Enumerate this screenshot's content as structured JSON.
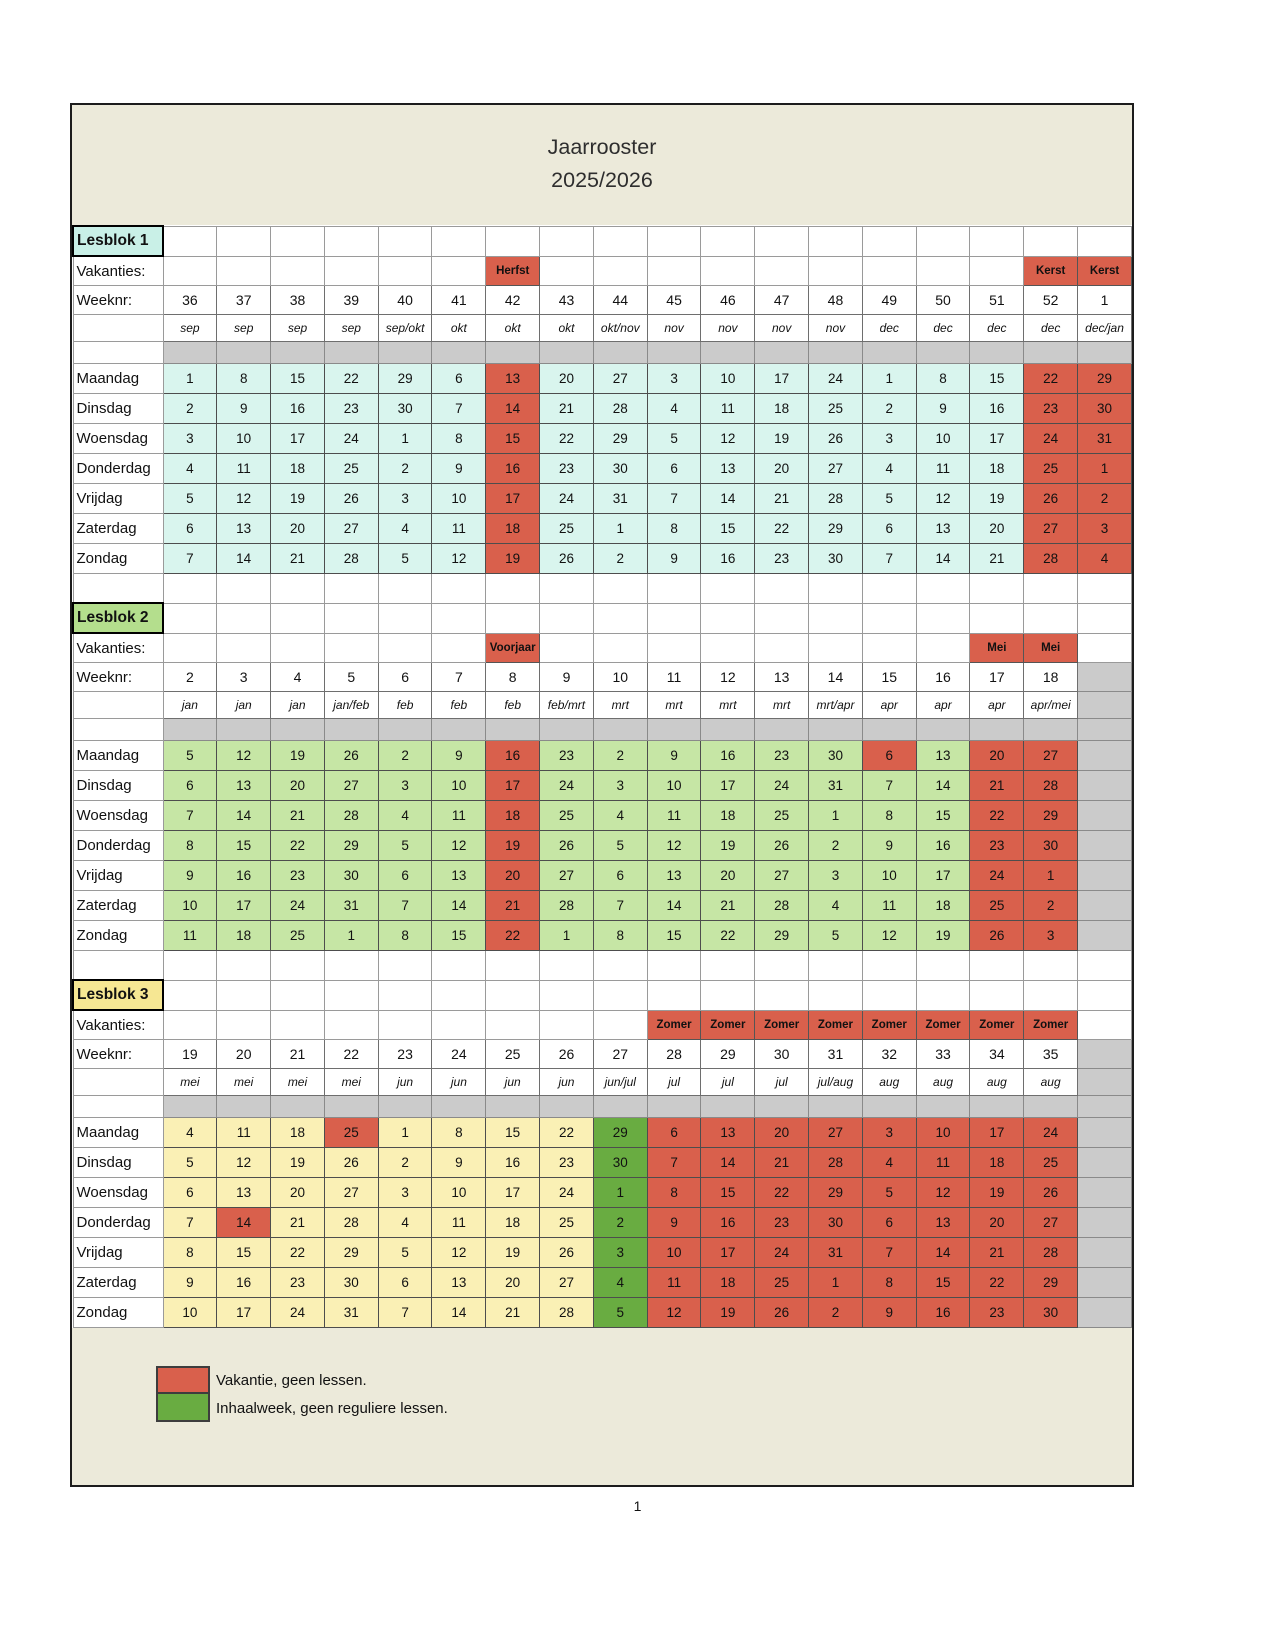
{
  "title": {
    "line1": "Jaarrooster",
    "line2": "2025/2026"
  },
  "page": {
    "number": "1"
  },
  "labels": {
    "vakanties": "Vakanties:",
    "weeknr": "Weeknr:"
  },
  "colors": {
    "vacation_red": "#D9604C",
    "inhaal_green": "#69AC41",
    "filler_gray": "#CBCBCB",
    "sheet_background": "#ECEADA"
  },
  "legend": [
    {
      "color": "#D9604C",
      "label": "Vakantie, geen lessen."
    },
    {
      "color": "#69AC41",
      "label": "Inhaalweek, geen reguliere lessen."
    }
  ],
  "blocks": [
    {
      "name": "Lesblok 1",
      "label_bg": "#C9F0E7",
      "cell_bg": "#D9F5EE",
      "has_filler_col": false,
      "inhaal_weeks": [],
      "extra_red_cells": [],
      "columns": [
        {
          "week": "36",
          "month": "sep",
          "vacation": ""
        },
        {
          "week": "37",
          "month": "sep",
          "vacation": ""
        },
        {
          "week": "38",
          "month": "sep",
          "vacation": ""
        },
        {
          "week": "39",
          "month": "sep",
          "vacation": ""
        },
        {
          "week": "40",
          "month": "sep/okt",
          "vacation": ""
        },
        {
          "week": "41",
          "month": "okt",
          "vacation": ""
        },
        {
          "week": "42",
          "month": "okt",
          "vacation": "Herfst"
        },
        {
          "week": "43",
          "month": "okt",
          "vacation": ""
        },
        {
          "week": "44",
          "month": "okt/nov",
          "vacation": ""
        },
        {
          "week": "45",
          "month": "nov",
          "vacation": ""
        },
        {
          "week": "46",
          "month": "nov",
          "vacation": ""
        },
        {
          "week": "47",
          "month": "nov",
          "vacation": ""
        },
        {
          "week": "48",
          "month": "nov",
          "vacation": ""
        },
        {
          "week": "49",
          "month": "dec",
          "vacation": ""
        },
        {
          "week": "50",
          "month": "dec",
          "vacation": ""
        },
        {
          "week": "51",
          "month": "dec",
          "vacation": ""
        },
        {
          "week": "52",
          "month": "dec",
          "vacation": "Kerst"
        },
        {
          "week": "1",
          "month": "dec/jan",
          "vacation": "Kerst"
        }
      ],
      "rows": [
        {
          "day": "Maandag",
          "values": [
            1,
            8,
            15,
            22,
            29,
            6,
            13,
            20,
            27,
            3,
            10,
            17,
            24,
            1,
            8,
            15,
            22,
            29
          ]
        },
        {
          "day": "Dinsdag",
          "values": [
            2,
            9,
            16,
            23,
            30,
            7,
            14,
            21,
            28,
            4,
            11,
            18,
            25,
            2,
            9,
            16,
            23,
            30
          ]
        },
        {
          "day": "Woensdag",
          "values": [
            3,
            10,
            17,
            24,
            1,
            8,
            15,
            22,
            29,
            5,
            12,
            19,
            26,
            3,
            10,
            17,
            24,
            31
          ]
        },
        {
          "day": "Donderdag",
          "values": [
            4,
            11,
            18,
            25,
            2,
            9,
            16,
            23,
            30,
            6,
            13,
            20,
            27,
            4,
            11,
            18,
            25,
            1
          ]
        },
        {
          "day": "Vrijdag",
          "values": [
            5,
            12,
            19,
            26,
            3,
            10,
            17,
            24,
            31,
            7,
            14,
            21,
            28,
            5,
            12,
            19,
            26,
            2
          ]
        },
        {
          "day": "Zaterdag",
          "values": [
            6,
            13,
            20,
            27,
            4,
            11,
            18,
            25,
            1,
            8,
            15,
            22,
            29,
            6,
            13,
            20,
            27,
            3
          ]
        },
        {
          "day": "Zondag",
          "values": [
            7,
            14,
            21,
            28,
            5,
            12,
            19,
            26,
            2,
            9,
            16,
            23,
            30,
            7,
            14,
            21,
            28,
            4
          ]
        }
      ]
    },
    {
      "name": "Lesblok 2",
      "label_bg": "#B4DE8D",
      "cell_bg": "#C6E6A5",
      "has_filler_col": true,
      "inhaal_weeks": [],
      "extra_red_cells": [
        {
          "day": "Maandag",
          "week": "15"
        }
      ],
      "columns": [
        {
          "week": "2",
          "month": "jan",
          "vacation": ""
        },
        {
          "week": "3",
          "month": "jan",
          "vacation": ""
        },
        {
          "week": "4",
          "month": "jan",
          "vacation": ""
        },
        {
          "week": "5",
          "month": "jan/feb",
          "vacation": ""
        },
        {
          "week": "6",
          "month": "feb",
          "vacation": ""
        },
        {
          "week": "7",
          "month": "feb",
          "vacation": ""
        },
        {
          "week": "8",
          "month": "feb",
          "vacation": "Voorjaar"
        },
        {
          "week": "9",
          "month": "feb/mrt",
          "vacation": ""
        },
        {
          "week": "10",
          "month": "mrt",
          "vacation": ""
        },
        {
          "week": "11",
          "month": "mrt",
          "vacation": ""
        },
        {
          "week": "12",
          "month": "mrt",
          "vacation": ""
        },
        {
          "week": "13",
          "month": "mrt",
          "vacation": ""
        },
        {
          "week": "14",
          "month": "mrt/apr",
          "vacation": ""
        },
        {
          "week": "15",
          "month": "apr",
          "vacation": ""
        },
        {
          "week": "16",
          "month": "apr",
          "vacation": ""
        },
        {
          "week": "17",
          "month": "apr",
          "vacation": "Mei"
        },
        {
          "week": "18",
          "month": "apr/mei",
          "vacation": "Mei"
        }
      ],
      "rows": [
        {
          "day": "Maandag",
          "values": [
            5,
            12,
            19,
            26,
            2,
            9,
            16,
            23,
            2,
            9,
            16,
            23,
            30,
            6,
            13,
            20,
            27
          ]
        },
        {
          "day": "Dinsdag",
          "values": [
            6,
            13,
            20,
            27,
            3,
            10,
            17,
            24,
            3,
            10,
            17,
            24,
            31,
            7,
            14,
            21,
            28
          ]
        },
        {
          "day": "Woensdag",
          "values": [
            7,
            14,
            21,
            28,
            4,
            11,
            18,
            25,
            4,
            11,
            18,
            25,
            1,
            8,
            15,
            22,
            29
          ]
        },
        {
          "day": "Donderdag",
          "values": [
            8,
            15,
            22,
            29,
            5,
            12,
            19,
            26,
            5,
            12,
            19,
            26,
            2,
            9,
            16,
            23,
            30
          ]
        },
        {
          "day": "Vrijdag",
          "values": [
            9,
            16,
            23,
            30,
            6,
            13,
            20,
            27,
            6,
            13,
            20,
            27,
            3,
            10,
            17,
            24,
            1
          ]
        },
        {
          "day": "Zaterdag",
          "values": [
            10,
            17,
            24,
            31,
            7,
            14,
            21,
            28,
            7,
            14,
            21,
            28,
            4,
            11,
            18,
            25,
            2
          ]
        },
        {
          "day": "Zondag",
          "values": [
            11,
            18,
            25,
            1,
            8,
            15,
            22,
            1,
            8,
            15,
            22,
            29,
            5,
            12,
            19,
            26,
            3
          ]
        }
      ]
    },
    {
      "name": "Lesblok 3",
      "label_bg": "#F6E793",
      "cell_bg": "#FAF0B5",
      "has_filler_col": true,
      "inhaal_weeks": [
        "27"
      ],
      "extra_red_cells": [
        {
          "day": "Maandag",
          "week": "22"
        },
        {
          "day": "Donderdag",
          "week": "20"
        }
      ],
      "columns": [
        {
          "week": "19",
          "month": "mei",
          "vacation": ""
        },
        {
          "week": "20",
          "month": "mei",
          "vacation": ""
        },
        {
          "week": "21",
          "month": "mei",
          "vacation": ""
        },
        {
          "week": "22",
          "month": "mei",
          "vacation": ""
        },
        {
          "week": "23",
          "month": "jun",
          "vacation": ""
        },
        {
          "week": "24",
          "month": "jun",
          "vacation": ""
        },
        {
          "week": "25",
          "month": "jun",
          "vacation": ""
        },
        {
          "week": "26",
          "month": "jun",
          "vacation": ""
        },
        {
          "week": "27",
          "month": "jun/jul",
          "vacation": ""
        },
        {
          "week": "28",
          "month": "jul",
          "vacation": "Zomer"
        },
        {
          "week": "29",
          "month": "jul",
          "vacation": "Zomer"
        },
        {
          "week": "30",
          "month": "jul",
          "vacation": "Zomer"
        },
        {
          "week": "31",
          "month": "jul/aug",
          "vacation": "Zomer"
        },
        {
          "week": "32",
          "month": "aug",
          "vacation": "Zomer"
        },
        {
          "week": "33",
          "month": "aug",
          "vacation": "Zomer"
        },
        {
          "week": "34",
          "month": "aug",
          "vacation": "Zomer"
        },
        {
          "week": "35",
          "month": "aug",
          "vacation": "Zomer"
        }
      ],
      "rows": [
        {
          "day": "Maandag",
          "values": [
            4,
            11,
            18,
            25,
            1,
            8,
            15,
            22,
            29,
            6,
            13,
            20,
            27,
            3,
            10,
            17,
            24
          ]
        },
        {
          "day": "Dinsdag",
          "values": [
            5,
            12,
            19,
            26,
            2,
            9,
            16,
            23,
            30,
            7,
            14,
            21,
            28,
            4,
            11,
            18,
            25
          ]
        },
        {
          "day": "Woensdag",
          "values": [
            6,
            13,
            20,
            27,
            3,
            10,
            17,
            24,
            1,
            8,
            15,
            22,
            29,
            5,
            12,
            19,
            26
          ]
        },
        {
          "day": "Donderdag",
          "values": [
            7,
            14,
            21,
            28,
            4,
            11,
            18,
            25,
            2,
            9,
            16,
            23,
            30,
            6,
            13,
            20,
            27
          ]
        },
        {
          "day": "Vrijdag",
          "values": [
            8,
            15,
            22,
            29,
            5,
            12,
            19,
            26,
            3,
            10,
            17,
            24,
            31,
            7,
            14,
            21,
            28
          ]
        },
        {
          "day": "Zaterdag",
          "values": [
            9,
            16,
            23,
            30,
            6,
            13,
            20,
            27,
            4,
            11,
            18,
            25,
            1,
            8,
            15,
            22,
            29
          ]
        },
        {
          "day": "Zondag",
          "values": [
            10,
            17,
            24,
            31,
            7,
            14,
            21,
            28,
            5,
            12,
            19,
            26,
            2,
            9,
            16,
            23,
            30
          ]
        }
      ]
    }
  ]
}
